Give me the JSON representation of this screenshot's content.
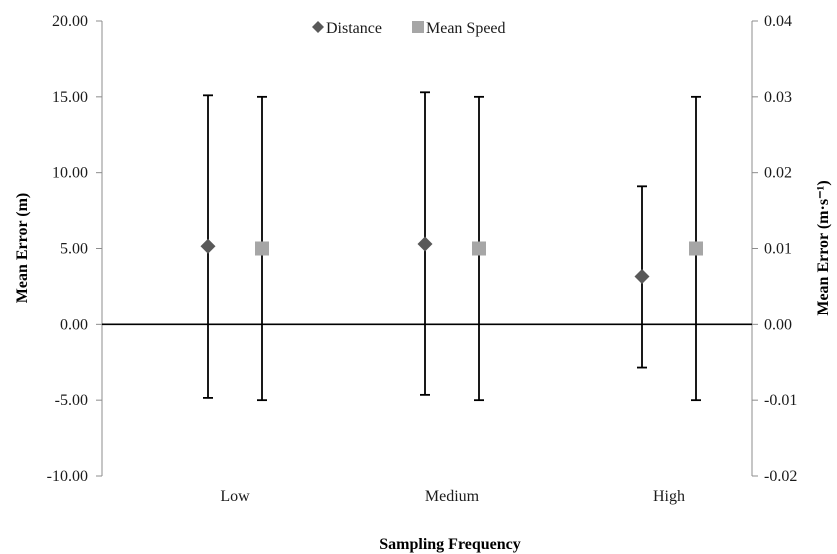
{
  "chart_data": {
    "type": "scatter",
    "categories": [
      "Low",
      "Medium",
      "High"
    ],
    "xlabel": "Sampling Frequency",
    "ylabel_left": "Mean Error (m)",
    "ylabel_right": "Mean Error (m·s⁻¹)",
    "ylim_left": [
      -10,
      20
    ],
    "yticks_left": [
      "-10.00",
      "-5.00",
      "0.00",
      "5.00",
      "10.00",
      "15.00",
      "20.00"
    ],
    "ylim_right": [
      -0.02,
      0.04
    ],
    "yticks_right": [
      "-0.02",
      "-0.01",
      "0.00",
      "0.01",
      "0.02",
      "0.03",
      "0.04"
    ],
    "legend_position": "top-center",
    "grid": false,
    "series": [
      {
        "name": "Distance",
        "axis": "left",
        "marker": "diamond",
        "color": "#595959",
        "values": [
          5.15,
          5.3,
          3.15
        ],
        "error_low": [
          -4.85,
          -4.65,
          -2.85
        ],
        "error_high": [
          15.1,
          15.3,
          9.1
        ]
      },
      {
        "name": "Mean Speed",
        "axis": "right",
        "marker": "square",
        "color": "#a6a6a6",
        "values": [
          0.01,
          0.01,
          0.01
        ],
        "error_low": [
          -0.01,
          -0.01,
          -0.01
        ],
        "error_high": [
          0.03,
          0.03,
          0.03
        ]
      }
    ]
  }
}
